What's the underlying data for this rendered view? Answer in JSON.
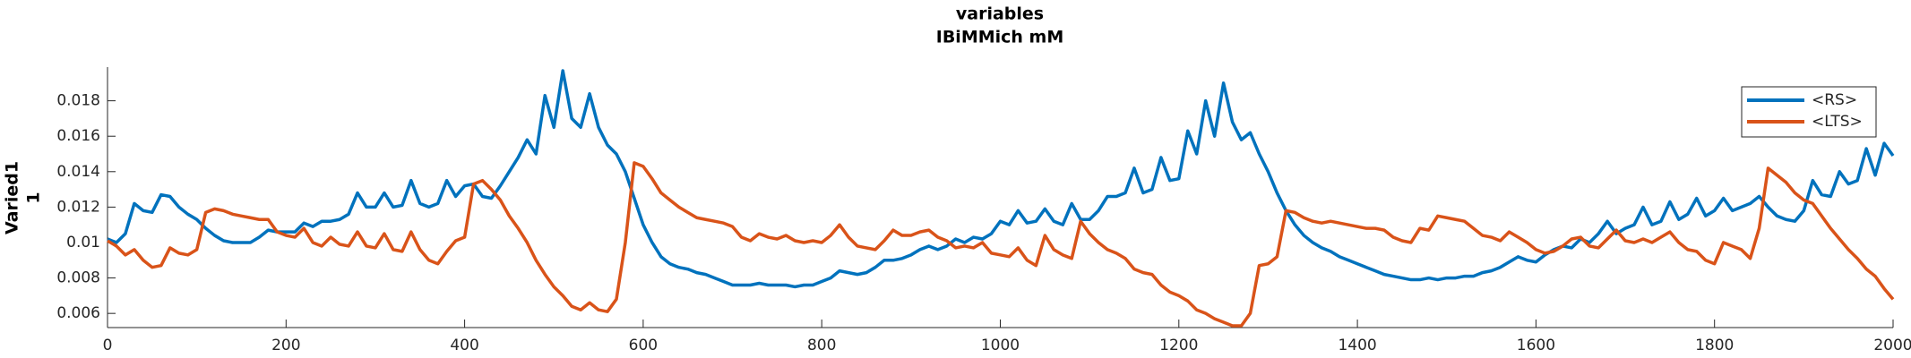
{
  "chart_data": {
    "type": "line",
    "title": [
      "variables",
      "IBiMMich mM"
    ],
    "ylabel": [
      "Varied1",
      "1"
    ],
    "x": [
      0,
      10,
      20,
      30,
      40,
      50,
      60,
      70,
      80,
      90,
      100,
      110,
      120,
      130,
      140,
      150,
      160,
      170,
      180,
      190,
      200,
      210,
      220,
      230,
      240,
      250,
      260,
      270,
      280,
      290,
      300,
      310,
      320,
      330,
      340,
      350,
      360,
      370,
      380,
      390,
      400,
      410,
      420,
      430,
      440,
      450,
      460,
      470,
      480,
      490,
      500,
      510,
      520,
      530,
      540,
      550,
      560,
      570,
      580,
      590,
      600,
      610,
      620,
      630,
      640,
      650,
      660,
      670,
      680,
      690,
      700,
      710,
      720,
      730,
      740,
      750,
      760,
      770,
      780,
      790,
      800,
      810,
      820,
      830,
      840,
      850,
      860,
      870,
      880,
      890,
      900,
      910,
      920,
      930,
      940,
      950,
      960,
      970,
      980,
      990,
      1000,
      1010,
      1020,
      1030,
      1040,
      1050,
      1060,
      1070,
      1080,
      1090,
      1100,
      1110,
      1120,
      1130,
      1140,
      1150,
      1160,
      1170,
      1180,
      1190,
      1200,
      1210,
      1220,
      1230,
      1240,
      1250,
      1260,
      1270,
      1280,
      1290,
      1300,
      1310,
      1320,
      1330,
      1340,
      1350,
      1360,
      1370,
      1380,
      1390,
      1400,
      1410,
      1420,
      1430,
      1440,
      1450,
      1460,
      1470,
      1480,
      1490,
      1500,
      1510,
      1520,
      1530,
      1540,
      1550,
      1560,
      1570,
      1580,
      1590,
      1600,
      1610,
      1620,
      1630,
      1640,
      1650,
      1660,
      1670,
      1680,
      1690,
      1700,
      1710,
      1720,
      1730,
      1740,
      1750,
      1760,
      1770,
      1780,
      1790,
      1800,
      1810,
      1820,
      1830,
      1840,
      1850,
      1860,
      1870,
      1880,
      1890,
      1900,
      1910,
      1920,
      1930,
      1940,
      1950,
      1960,
      1970,
      1980,
      1990,
      2000
    ],
    "series": [
      {
        "name": "<RS>",
        "color": "#0072bd",
        "values": [
          0.0102,
          0.01,
          0.0105,
          0.0122,
          0.0118,
          0.0117,
          0.0127,
          0.0126,
          0.012,
          0.0116,
          0.0113,
          0.0108,
          0.0104,
          0.0101,
          0.01,
          0.01,
          0.01,
          0.0103,
          0.0107,
          0.0106,
          0.0106,
          0.0106,
          0.0111,
          0.0109,
          0.0112,
          0.0112,
          0.0113,
          0.0116,
          0.0128,
          0.012,
          0.012,
          0.0128,
          0.012,
          0.0121,
          0.0135,
          0.0122,
          0.012,
          0.0122,
          0.0135,
          0.0126,
          0.0132,
          0.0133,
          0.0126,
          0.0125,
          0.0132,
          0.014,
          0.0148,
          0.0158,
          0.015,
          0.0183,
          0.0165,
          0.0197,
          0.017,
          0.0165,
          0.0184,
          0.0165,
          0.0155,
          0.015,
          0.014,
          0.0125,
          0.011,
          0.01,
          0.0092,
          0.0088,
          0.0086,
          0.0085,
          0.0083,
          0.0082,
          0.008,
          0.0078,
          0.0076,
          0.0076,
          0.0076,
          0.0077,
          0.0076,
          0.0076,
          0.0076,
          0.0075,
          0.0076,
          0.0076,
          0.0078,
          0.008,
          0.0084,
          0.0083,
          0.0082,
          0.0083,
          0.0086,
          0.009,
          0.009,
          0.0091,
          0.0093,
          0.0096,
          0.0098,
          0.0096,
          0.0098,
          0.0102,
          0.01,
          0.0103,
          0.0102,
          0.0105,
          0.0112,
          0.011,
          0.0118,
          0.0111,
          0.0112,
          0.0119,
          0.0112,
          0.011,
          0.0122,
          0.0113,
          0.0113,
          0.0118,
          0.0126,
          0.0126,
          0.0128,
          0.0142,
          0.0128,
          0.013,
          0.0148,
          0.0135,
          0.0136,
          0.0163,
          0.015,
          0.018,
          0.016,
          0.019,
          0.0168,
          0.0158,
          0.0162,
          0.015,
          0.014,
          0.0128,
          0.0118,
          0.011,
          0.0104,
          0.01,
          0.0097,
          0.0095,
          0.0092,
          0.009,
          0.0088,
          0.0086,
          0.0084,
          0.0082,
          0.0081,
          0.008,
          0.0079,
          0.0079,
          0.008,
          0.0079,
          0.008,
          0.008,
          0.0081,
          0.0081,
          0.0083,
          0.0084,
          0.0086,
          0.0089,
          0.0092,
          0.009,
          0.0089,
          0.0093,
          0.0096,
          0.0098,
          0.0097,
          0.0102,
          0.01,
          0.0105,
          0.0112,
          0.0105,
          0.0108,
          0.011,
          0.012,
          0.011,
          0.0112,
          0.0123,
          0.0113,
          0.0116,
          0.0125,
          0.0115,
          0.0118,
          0.0125,
          0.0118,
          0.012,
          0.0122,
          0.0126,
          0.012,
          0.0115,
          0.0113,
          0.0112,
          0.0118,
          0.0135,
          0.0127,
          0.0126,
          0.014,
          0.0133,
          0.0135,
          0.0153,
          0.0138,
          0.0156,
          0.0149
        ]
      },
      {
        "name": "<LTS>",
        "color": "#d95319",
        "values": [
          0.0101,
          0.0098,
          0.0093,
          0.0096,
          0.009,
          0.0086,
          0.0087,
          0.0097,
          0.0094,
          0.0093,
          0.0096,
          0.0117,
          0.0119,
          0.0118,
          0.0116,
          0.0115,
          0.0114,
          0.0113,
          0.0113,
          0.0106,
          0.0104,
          0.0103,
          0.0108,
          0.01,
          0.0098,
          0.0103,
          0.0099,
          0.0098,
          0.0106,
          0.0098,
          0.0097,
          0.0105,
          0.0096,
          0.0095,
          0.0106,
          0.0096,
          0.009,
          0.0088,
          0.0095,
          0.0101,
          0.0103,
          0.0133,
          0.0135,
          0.013,
          0.0124,
          0.0115,
          0.0108,
          0.01,
          0.009,
          0.0082,
          0.0075,
          0.007,
          0.0064,
          0.0062,
          0.0066,
          0.0062,
          0.0061,
          0.0068,
          0.01,
          0.0145,
          0.0143,
          0.0136,
          0.0128,
          0.0124,
          0.012,
          0.0117,
          0.0114,
          0.0113,
          0.0112,
          0.0111,
          0.0109,
          0.0103,
          0.0101,
          0.0105,
          0.0103,
          0.0102,
          0.0104,
          0.0101,
          0.01,
          0.0101,
          0.01,
          0.0104,
          0.011,
          0.0103,
          0.0098,
          0.0097,
          0.0096,
          0.0101,
          0.0107,
          0.0104,
          0.0104,
          0.0106,
          0.0107,
          0.0103,
          0.0101,
          0.0097,
          0.0098,
          0.0097,
          0.01,
          0.0094,
          0.0093,
          0.0092,
          0.0097,
          0.009,
          0.0087,
          0.0104,
          0.0096,
          0.0093,
          0.0091,
          0.0112,
          0.0105,
          0.01,
          0.0096,
          0.0094,
          0.0091,
          0.0085,
          0.0083,
          0.0082,
          0.0076,
          0.0072,
          0.007,
          0.0067,
          0.0062,
          0.006,
          0.0057,
          0.0055,
          0.0053,
          0.0053,
          0.006,
          0.0087,
          0.0088,
          0.0092,
          0.0118,
          0.0117,
          0.0114,
          0.0112,
          0.0111,
          0.0112,
          0.0111,
          0.011,
          0.0109,
          0.0108,
          0.0108,
          0.0107,
          0.0103,
          0.0101,
          0.01,
          0.0108,
          0.0107,
          0.0115,
          0.0114,
          0.0113,
          0.0112,
          0.0108,
          0.0104,
          0.0103,
          0.0101,
          0.0106,
          0.0103,
          0.01,
          0.0096,
          0.0094,
          0.0095,
          0.0098,
          0.0102,
          0.0103,
          0.0098,
          0.0097,
          0.0102,
          0.0107,
          0.0101,
          0.01,
          0.0102,
          0.01,
          0.0103,
          0.0106,
          0.01,
          0.0096,
          0.0095,
          0.009,
          0.0088,
          0.01,
          0.0098,
          0.0096,
          0.0091,
          0.0108,
          0.0142,
          0.0138,
          0.0134,
          0.0128,
          0.0124,
          0.0122,
          0.0115,
          0.0108,
          0.0102,
          0.0096,
          0.0091,
          0.0085,
          0.0081,
          0.0074,
          0.0068
        ]
      }
    ],
    "xlim": [
      0,
      2000
    ],
    "xticks": [
      0,
      200,
      400,
      600,
      800,
      1000,
      1200,
      1400,
      1600,
      1800,
      2000
    ],
    "ylim": [
      0.0052,
      0.0199
    ],
    "yticks": [
      0.006,
      0.008,
      0.01,
      0.012,
      0.014,
      0.016,
      0.018
    ],
    "legend": "upper right"
  }
}
